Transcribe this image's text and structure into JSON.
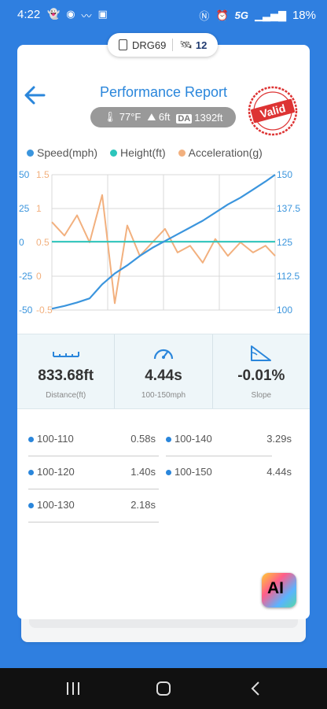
{
  "status_bar": {
    "time": "4:22",
    "network": "5G",
    "battery": "18%"
  },
  "device": {
    "name": "DRG69",
    "satellites": "12"
  },
  "header": {
    "title": "Performance Report",
    "stamp_text": "Valid"
  },
  "conditions": {
    "temperature": "77°F",
    "elevation": "6ft",
    "da_label": "DA",
    "density_altitude": "1392ft"
  },
  "chart_data": {
    "type": "line",
    "title": "",
    "series": [
      {
        "name": "Speed(mph)",
        "axis": "right",
        "color": "#3b95dd"
      },
      {
        "name": "Height(ft)",
        "axis": "left-outer",
        "color": "#2cc5bb"
      },
      {
        "name": "Acceleration(g)",
        "axis": "left-inner",
        "color": "#f2b07e"
      }
    ],
    "axes": {
      "left_outer": {
        "label": "Height(ft)",
        "ticks": [
          "50",
          "25",
          "0",
          "-25",
          "-50"
        ],
        "range": [
          -50,
          50
        ],
        "color": "#3b95dd"
      },
      "left_inner": {
        "label": "Acceleration(g)",
        "ticks": [
          "1.5",
          "1",
          "0.5",
          "0",
          "-0.5"
        ],
        "range": [
          -0.5,
          1.5
        ],
        "color": "#f2b07e"
      },
      "right": {
        "label": "Speed(mph)",
        "ticks": [
          "150",
          "137.5",
          "125",
          "112.5",
          "100"
        ],
        "range": [
          100,
          150
        ],
        "color": "#3b95dd"
      }
    },
    "grid": true,
    "legend_position": "top",
    "data": {
      "t": [
        0,
        0.25,
        0.5,
        0.75,
        1.0,
        1.25,
        1.5,
        1.75,
        2.0,
        2.25,
        2.5,
        2.75,
        3.0,
        3.25,
        3.5,
        3.75,
        4.0,
        4.25,
        4.44
      ],
      "speed": [
        100.5,
        101.5,
        102.8,
        104.3,
        109.5,
        113.5,
        116.5,
        120.0,
        123.0,
        125.5,
        128.0,
        130.5,
        133.0,
        136.0,
        139.0,
        141.5,
        144.5,
        147.5,
        150.0
      ],
      "height": [
        0.5,
        0.5,
        0.5,
        0.5,
        0.5,
        0.5,
        0.5,
        0.5,
        0.5,
        0.5,
        0.5,
        0.5,
        0.5,
        0.5,
        0.5,
        0.5,
        0.5,
        0.5,
        0.5
      ],
      "acceleration": [
        0.8,
        0.6,
        0.9,
        0.5,
        1.2,
        -0.4,
        0.75,
        0.3,
        0.5,
        0.7,
        0.35,
        0.45,
        0.2,
        0.55,
        0.3,
        0.5,
        0.35,
        0.45,
        0.3
      ]
    }
  },
  "metrics": [
    {
      "value": "833.68ft",
      "label": "Distance(ft)",
      "icon": "ruler-icon"
    },
    {
      "value": "4.44s",
      "label": "100-150mph",
      "icon": "speedometer-icon"
    },
    {
      "value": "-0.01%",
      "label": "Slope",
      "icon": "slope-icon"
    }
  ],
  "splits": [
    {
      "range": "100-110",
      "time": "0.58s"
    },
    {
      "range": "100-120",
      "time": "1.40s"
    },
    {
      "range": "100-130",
      "time": "2.18s"
    },
    {
      "range": "100-140",
      "time": "3.29s"
    },
    {
      "range": "100-150",
      "time": "4.44s"
    }
  ],
  "ai_button": {
    "label": "AI"
  },
  "colors": {
    "brand_blue": "#2a86db",
    "background": "#2f7fe0",
    "metrics_bg": "#eef6f9"
  }
}
